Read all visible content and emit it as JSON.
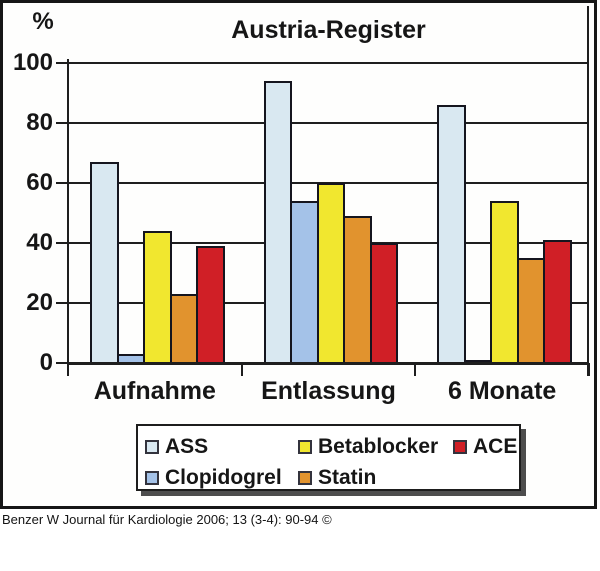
{
  "header": {
    "title": "Austria-Register",
    "y_unit_label": "%"
  },
  "footer": {
    "citation": "Benzer W Journal für Kardiologie 2006; 13 (3-4): 90-94 ©"
  },
  "chart_data": {
    "type": "bar",
    "title": "Austria-Register",
    "categories": [
      "Aufnahme",
      "Entlassung",
      "6 Monate"
    ],
    "series": [
      {
        "name": "ASS",
        "color": "#d9e8f1",
        "values": [
          67,
          94,
          86
        ]
      },
      {
        "name": "Clopidogrel",
        "color": "#a4c2e8",
        "values": [
          3,
          54,
          1
        ]
      },
      {
        "name": "Betablocker",
        "color": "#f1e72f",
        "values": [
          44,
          60,
          54
        ]
      },
      {
        "name": "Statin",
        "color": "#e1932e",
        "values": [
          23,
          49,
          35
        ]
      },
      {
        "name": "ACE",
        "color": "#d01f26",
        "values": [
          39,
          40,
          41
        ]
      }
    ],
    "ylabel": "%",
    "ylim": [
      0,
      100
    ],
    "yticks": [
      100,
      80,
      60,
      40,
      20,
      0
    ],
    "grid": true,
    "legend_position": "bottom-box",
    "legend_display_order": [
      "ASS",
      "Betablocker",
      "ACE",
      "Clopidogrel",
      "Statin"
    ]
  }
}
